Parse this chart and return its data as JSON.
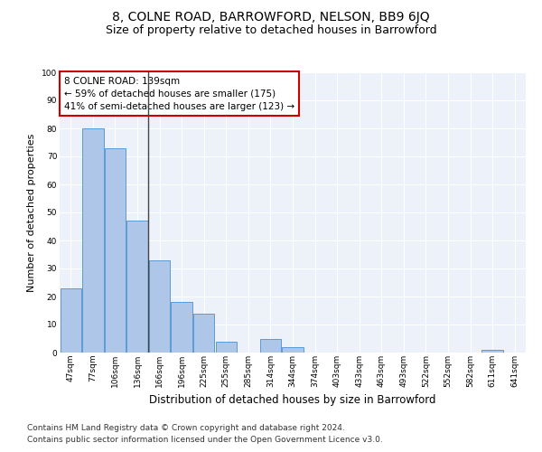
{
  "title": "8, COLNE ROAD, BARROWFORD, NELSON, BB9 6JQ",
  "subtitle": "Size of property relative to detached houses in Barrowford",
  "xlabel": "Distribution of detached houses by size in Barrowford",
  "ylabel": "Number of detached properties",
  "categories": [
    "47sqm",
    "77sqm",
    "106sqm",
    "136sqm",
    "166sqm",
    "196sqm",
    "225sqm",
    "255sqm",
    "285sqm",
    "314sqm",
    "344sqm",
    "374sqm",
    "403sqm",
    "433sqm",
    "463sqm",
    "493sqm",
    "522sqm",
    "552sqm",
    "582sqm",
    "611sqm",
    "641sqm"
  ],
  "values": [
    23,
    80,
    73,
    47,
    33,
    18,
    14,
    4,
    0,
    5,
    2,
    0,
    0,
    0,
    0,
    0,
    0,
    0,
    0,
    1,
    0
  ],
  "bar_color": "#aec6e8",
  "bar_edge_color": "#5b9bd5",
  "vline_x_index": 3.5,
  "vline_color": "#444444",
  "annotation_text": "8 COLNE ROAD: 139sqm\n← 59% of detached houses are smaller (175)\n41% of semi-detached houses are larger (123) →",
  "annotation_box_color": "#ffffff",
  "annotation_box_edge_color": "#cc0000",
  "ylim": [
    0,
    100
  ],
  "yticks": [
    0,
    10,
    20,
    30,
    40,
    50,
    60,
    70,
    80,
    90,
    100
  ],
  "background_color": "#edf2fa",
  "footer_line1": "Contains HM Land Registry data © Crown copyright and database right 2024.",
  "footer_line2": "Contains public sector information licensed under the Open Government Licence v3.0.",
  "title_fontsize": 10,
  "subtitle_fontsize": 9,
  "ylabel_fontsize": 8,
  "xlabel_fontsize": 8.5,
  "tick_fontsize": 6.5,
  "annotation_fontsize": 7.5,
  "footer_fontsize": 6.5
}
